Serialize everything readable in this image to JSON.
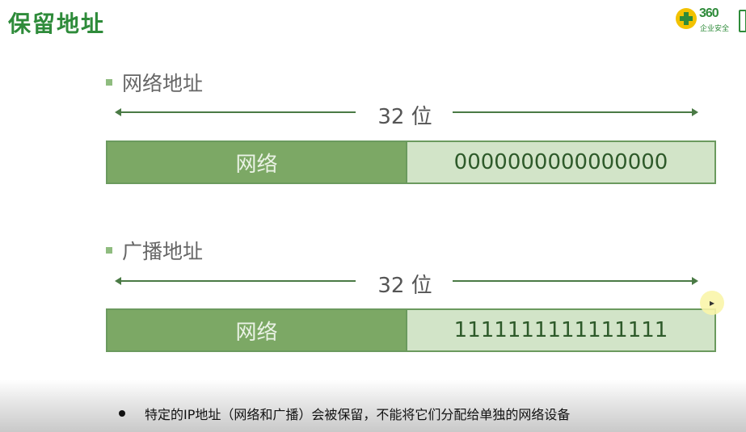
{
  "slide": {
    "title": "保留地址",
    "logo": {
      "number": "360",
      "subtitle": "企业安全"
    }
  },
  "sections": [
    {
      "heading": "网络地址",
      "width_label": "32 位",
      "network_label": "网络",
      "host_bits": "0000000000000000"
    },
    {
      "heading": "广播地址",
      "width_label": "32 位",
      "network_label": "网络",
      "host_bits": "1111111111111111"
    }
  ],
  "caption": "特定的IP地址（网络和广播）会被保留，不能将它们分配给单独的网络设备",
  "colors": {
    "title": "#2e8b3a",
    "network_fill": "#7ca865",
    "host_fill": "#d2e4c8"
  }
}
